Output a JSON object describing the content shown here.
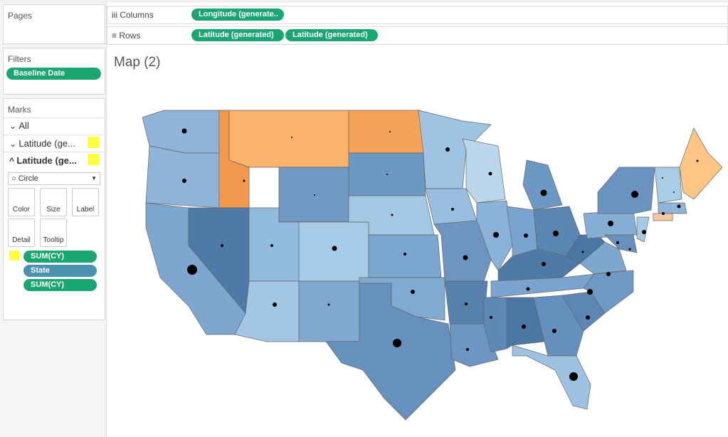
{
  "pages": {
    "title": "Pages"
  },
  "filters": {
    "title": "Filters",
    "pills": [
      "Baseline Date"
    ]
  },
  "marks": {
    "title": "Marks",
    "layers": [
      "All",
      "Latitude (ge...",
      "Latitude (ge..."
    ],
    "mark_type": "Circle",
    "buttons": [
      "Color",
      "Size",
      "Label",
      "Detail",
      "Tooltip"
    ],
    "fields": [
      "SUM(CY)",
      "State",
      "SUM(CY)"
    ]
  },
  "shelves": {
    "columns": {
      "label": "Columns",
      "pills": [
        "Longitude (generate.."
      ]
    },
    "rows": {
      "label": "Rows",
      "pills": [
        "Latitude (generated)",
        "Latitude (generated)"
      ]
    }
  },
  "sheet": {
    "title": "Map (2)"
  }
}
